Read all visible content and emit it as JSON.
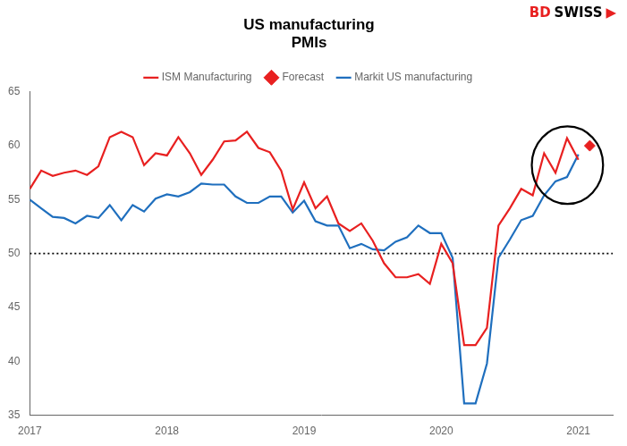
{
  "chart_data": {
    "type": "line",
    "title": [
      "US manufacturing",
      "PMIs"
    ],
    "series": [
      {
        "name": "ISM Manufacturing",
        "type": "line",
        "color": "#e82020",
        "x": [
          2017.0,
          2017.083,
          2017.167,
          2017.25,
          2017.333,
          2017.417,
          2017.5,
          2017.583,
          2017.667,
          2017.75,
          2017.833,
          2017.917,
          2018.0,
          2018.083,
          2018.167,
          2018.25,
          2018.333,
          2018.417,
          2018.5,
          2018.583,
          2018.667,
          2018.75,
          2018.833,
          2018.917,
          2019.0,
          2019.083,
          2019.167,
          2019.25,
          2019.333,
          2019.417,
          2019.5,
          2019.583,
          2019.667,
          2019.75,
          2019.833,
          2019.917,
          2020.0,
          2020.083,
          2020.167,
          2020.25,
          2020.333,
          2020.417,
          2020.5,
          2020.583,
          2020.667,
          2020.75,
          2020.833,
          2020.917,
          2021.0
        ],
        "values": [
          56.0,
          57.7,
          57.2,
          57.5,
          57.7,
          57.3,
          58.1,
          60.8,
          61.3,
          60.8,
          58.2,
          59.3,
          59.1,
          60.8,
          59.3,
          57.3,
          58.7,
          60.4,
          60.5,
          61.3,
          59.8,
          59.4,
          57.7,
          54.1,
          56.6,
          54.2,
          55.3,
          52.8,
          52.1,
          52.8,
          51.2,
          49.1,
          47.8,
          47.8,
          48.1,
          47.2,
          50.9,
          49.1,
          41.5,
          41.5,
          43.1,
          52.6,
          54.2,
          56.0,
          55.4,
          59.3,
          57.5,
          60.7,
          58.7
        ]
      },
      {
        "name": "Forecast",
        "type": "scatter",
        "marker": "diamond",
        "color": "#e82020",
        "x": [
          2021.083
        ],
        "values": [
          60.0
        ]
      },
      {
        "name": "Markit US manufacturing",
        "type": "line",
        "color": "#1f6fbe",
        "x": [
          2017.0,
          2017.083,
          2017.167,
          2017.25,
          2017.333,
          2017.417,
          2017.5,
          2017.583,
          2017.667,
          2017.75,
          2017.833,
          2017.917,
          2018.0,
          2018.083,
          2018.167,
          2018.25,
          2018.333,
          2018.417,
          2018.5,
          2018.583,
          2018.667,
          2018.75,
          2018.833,
          2018.917,
          2019.0,
          2019.083,
          2019.167,
          2019.25,
          2019.333,
          2019.417,
          2019.5,
          2019.583,
          2019.667,
          2019.75,
          2019.833,
          2019.917,
          2020.0,
          2020.083,
          2020.167,
          2020.25,
          2020.333,
          2020.417,
          2020.5,
          2020.583,
          2020.667,
          2020.75,
          2020.833,
          2020.917,
          2021.0
        ],
        "values": [
          55.0,
          54.2,
          53.4,
          53.3,
          52.8,
          53.5,
          53.3,
          54.5,
          53.1,
          54.5,
          53.9,
          55.1,
          55.5,
          55.3,
          55.7,
          56.5,
          56.4,
          56.4,
          55.3,
          54.7,
          54.7,
          55.3,
          55.3,
          53.8,
          54.9,
          53.0,
          52.6,
          52.6,
          50.5,
          50.9,
          50.4,
          50.3,
          51.1,
          51.5,
          52.6,
          51.9,
          51.9,
          49.6,
          36.1,
          36.1,
          39.8,
          49.6,
          51.3,
          53.1,
          53.5,
          55.4,
          56.7,
          57.1,
          59.2
        ]
      }
    ],
    "xlim": [
      2017.0,
      2021.25
    ],
    "xticks": [
      2017,
      2018,
      2019,
      2020,
      2021
    ],
    "ylim": [
      35,
      65
    ],
    "yticks": [
      35,
      40,
      45,
      50,
      55,
      60,
      65
    ],
    "grid": false,
    "legend": "top",
    "reference_lines": [
      {
        "y": 50,
        "color": "#000000",
        "line_style": "dotted"
      }
    ],
    "ellipse": {
      "x": 2020.92,
      "y": 58.2,
      "width": 0.52,
      "height": 7.2
    },
    "annotations": [
      {
        "text": "BD",
        "color": "#e82020"
      },
      {
        "text": "SWISS",
        "color": "#000000"
      },
      {
        "text": "▶",
        "color": "#e82020"
      }
    ]
  }
}
